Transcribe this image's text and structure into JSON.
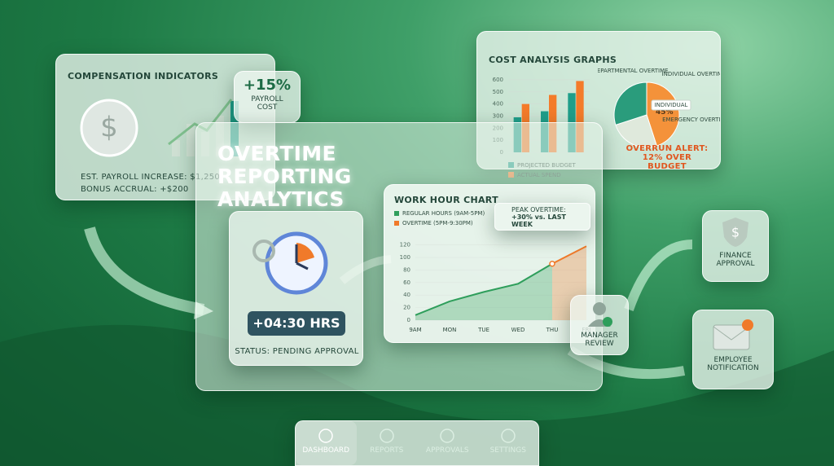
{
  "compensation": {
    "title": "COMPENSATION INDICATORS",
    "badge_value": "+15%",
    "badge_label": "PAYROLL COST",
    "payroll_increase": "EST. PAYROLL INCREASE: $1,250",
    "bonus_accrual": "BONUS ACCRUAL: +$200"
  },
  "main": {
    "title": "OVERTIME REPORTING ANALYTICS"
  },
  "timer": {
    "value": "+04:30 HRS",
    "status": "STATUS: PENDING APPROVAL"
  },
  "work_chart": {
    "type": "line",
    "title": "WORK HOUR CHART",
    "categories": [
      "9AM",
      "MON",
      "TUE",
      "WED",
      "THU",
      "FRI"
    ],
    "series": [
      {
        "name": "REGULAR HOURS (9AM-5PM)",
        "color": "#2e9e5b",
        "values": [
          8,
          30,
          45,
          58,
          90,
          null
        ]
      },
      {
        "name": "OVERTIME (5PM-9:30PM)",
        "color": "#f07a2a",
        "values": [
          null,
          null,
          null,
          null,
          90,
          118
        ]
      }
    ],
    "ylim": [
      0,
      130
    ],
    "yticks": [
      0,
      20,
      40,
      60,
      80,
      100,
      120
    ],
    "annotation": {
      "title": "PEAK OVERTIME:",
      "text": "+30% vs. LAST WEEK"
    }
  },
  "cost": {
    "title": "COST ANALYSIS GRAPHS",
    "bar_chart": {
      "type": "bar",
      "series": [
        {
          "name": "PROJECTED BUDGET",
          "color": "#1f9e8a",
          "values": [
            290,
            340,
            490
          ]
        },
        {
          "name": "ACTUAL SPEND",
          "color": "#f47b2a",
          "values": [
            400,
            475,
            590
          ]
        }
      ],
      "ylim": [
        0,
        620
      ],
      "yticks": [
        0,
        100,
        200,
        300,
        400,
        500,
        600
      ]
    },
    "pie_chart": {
      "type": "pie",
      "labels": [
        "INDIVIDUAL OVERTIME",
        "EMERGENCY OVERTIME",
        "DEPARTMENTAL OVERTIME"
      ],
      "values": [
        45,
        25,
        30
      ],
      "colors": [
        "#f4923a",
        "#dfe9dc",
        "#2a9c7c"
      ],
      "value_labels": [
        "45%",
        null,
        null
      ],
      "callout": "INDIVIDUAL"
    },
    "alert": "OVERRUN ALERT: 12% OVER BUDGET"
  },
  "workflow": {
    "manager": "MANAGER REVIEW",
    "finance": "FINANCE APPROVAL",
    "employee": "EMPLOYEE NOTIFICATION"
  },
  "nav": [
    "DASHBOARD",
    "REPORTS",
    "APPROVALS",
    "SETTINGS"
  ]
}
